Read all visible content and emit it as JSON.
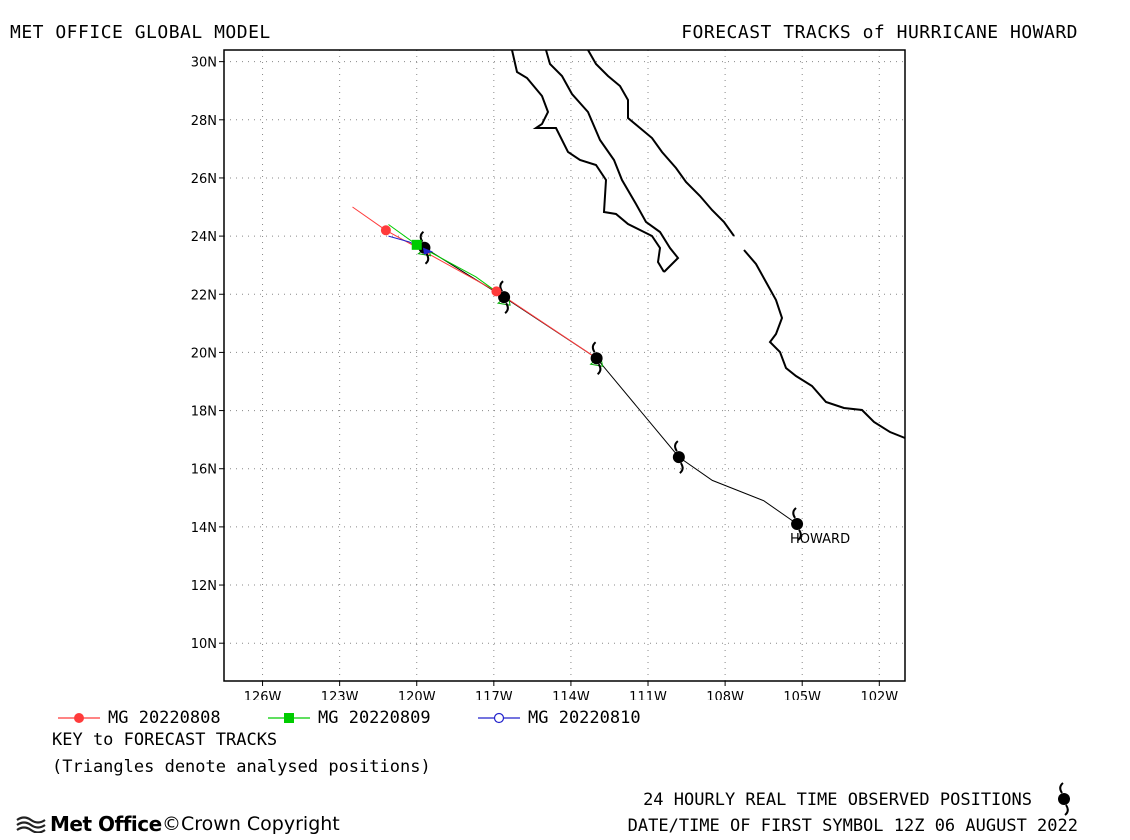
{
  "header": {
    "left_title": "MET OFFICE GLOBAL MODEL",
    "right_title": "FORECAST TRACKS of HURRICANE HOWARD"
  },
  "axes": {
    "lat_labels": [
      "30N",
      "28N",
      "26N",
      "24N",
      "22N",
      "20N",
      "18N",
      "16N",
      "14N",
      "12N",
      "10N"
    ],
    "lon_labels": [
      "126W",
      "123W",
      "120W",
      "117W",
      "114W",
      "111W",
      "108W",
      "105W",
      "102W"
    ]
  },
  "storm_label": "HOWARD",
  "legend": {
    "items": [
      {
        "label": "MG 20220808",
        "color": "#ff3b3b",
        "marker": "filled-circle"
      },
      {
        "label": "MG 20220809",
        "color": "#00cc00",
        "marker": "filled-square"
      },
      {
        "label": "MG 20220810",
        "color": "#2222cc",
        "marker": "open-circle"
      }
    ],
    "key_title": "KEY to FORECAST TRACKS",
    "key_note": "(Triangles denote analysed positions)"
  },
  "footer": {
    "observed_text": "24 HOURLY REAL TIME OBSERVED POSITIONS",
    "datetime_text": "DATE/TIME OF FIRST SYMBOL 12Z 06 AUGUST 2022",
    "logo_text": "Met Office",
    "copyright_text": "©Crown Copyright"
  },
  "map": {
    "lon_range": [
      -127.5,
      -101.0
    ],
    "lat_range": [
      8.7,
      30.4
    ],
    "observed_track": [
      [
        -105.2,
        14.1
      ],
      [
        -106.5,
        14.9
      ],
      [
        -108.5,
        15.6
      ],
      [
        -109.8,
        16.4
      ],
      [
        -113.0,
        19.8
      ],
      [
        -116.6,
        21.9
      ],
      [
        -119.7,
        23.6
      ]
    ],
    "observed_symbols": [
      [
        -105.2,
        14.1
      ],
      [
        -109.8,
        16.4
      ],
      [
        -113.0,
        19.8
      ],
      [
        -116.6,
        21.9
      ],
      [
        -119.7,
        23.6
      ]
    ],
    "forecasts": [
      {
        "color": "#ff3b3b",
        "track": [
          [
            -113.0,
            19.8
          ],
          [
            -116.9,
            22.1
          ],
          [
            -121.2,
            24.2
          ],
          [
            -122.5,
            25.0
          ]
        ],
        "markers": [
          [
            -116.9,
            22.1
          ],
          [
            -121.2,
            24.2
          ]
        ],
        "marker": "filled-circle"
      },
      {
        "color": "#00cc00",
        "track": [
          [
            -116.6,
            21.9
          ],
          [
            -117.7,
            22.6
          ],
          [
            -120.0,
            23.7
          ],
          [
            -121.1,
            24.4
          ]
        ],
        "markers": [
          [
            -120.0,
            23.7
          ]
        ],
        "marker": "filled-square"
      },
      {
        "color": "#2222cc",
        "track": [
          [
            -119.6,
            23.5
          ],
          [
            -120.3,
            23.8
          ],
          [
            -121.1,
            24.0
          ]
        ],
        "markers": [],
        "marker": "open-circle"
      }
    ],
    "analysed_triangles": [
      [
        -116.6,
        21.9
      ],
      [
        -119.7,
        23.6
      ],
      [
        -113.0,
        19.8
      ]
    ]
  }
}
